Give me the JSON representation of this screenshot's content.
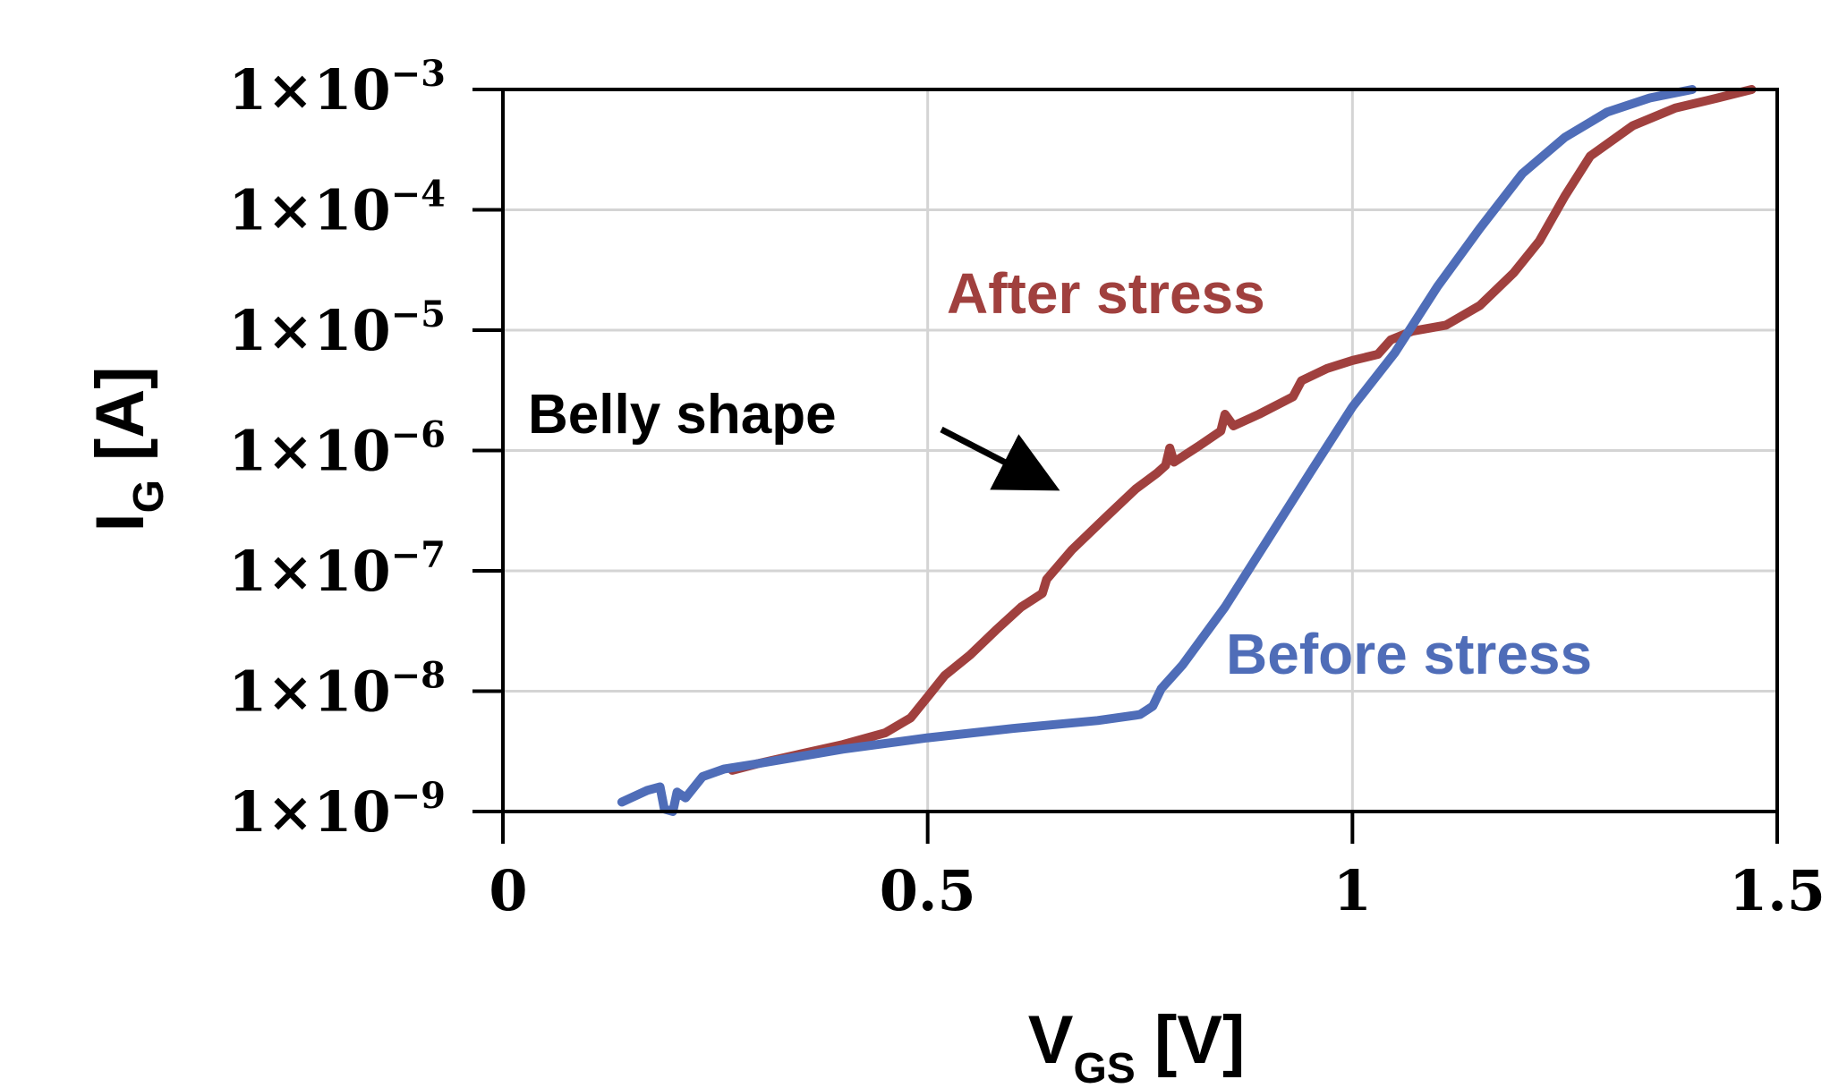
{
  "chart_data": {
    "type": "line",
    "title": "",
    "x_axis": {
      "label_main": "V",
      "label_sub": "GS",
      "label_unit": "[V]",
      "range": [
        0,
        1.5
      ],
      "ticks": [
        0,
        0.5,
        1,
        1.5
      ],
      "tick_labels": [
        "0",
        "0.5",
        "1",
        "1.5"
      ]
    },
    "y_axis": {
      "label_main": "I",
      "label_sub": "G",
      "label_unit": "[A]",
      "scale": "log",
      "range": [
        1e-09,
        0.001
      ],
      "ticks": [
        0.001,
        0.0001,
        1e-05,
        1e-06,
        1e-07,
        1e-08,
        1e-09
      ],
      "tick_labels": [
        {
          "base": "1×10",
          "exp": "−3"
        },
        {
          "base": "1×10",
          "exp": "−4"
        },
        {
          "base": "1×10",
          "exp": "−5"
        },
        {
          "base": "1×10",
          "exp": "−6"
        },
        {
          "base": "1×10",
          "exp": "−7"
        },
        {
          "base": "1×10",
          "exp": "−8"
        },
        {
          "base": "1×10",
          "exp": "−9"
        }
      ]
    },
    "grid": true,
    "series": [
      {
        "name": "After stress",
        "color": "#a0403e",
        "points": [
          [
            0.27,
            2.2e-09
          ],
          [
            0.3,
            2.5e-09
          ],
          [
            0.35,
            3e-09
          ],
          [
            0.4,
            3.6e-09
          ],
          [
            0.45,
            4.5e-09
          ],
          [
            0.48,
            6e-09
          ],
          [
            0.5,
            9e-09
          ],
          [
            0.52,
            1.35e-08
          ],
          [
            0.55,
            2e-08
          ],
          [
            0.58,
            3.2e-08
          ],
          [
            0.61,
            5e-08
          ],
          [
            0.635,
            6.5e-08
          ],
          [
            0.64,
            8.5e-08
          ],
          [
            0.67,
            1.5e-07
          ],
          [
            0.71,
            2.8e-07
          ],
          [
            0.745,
            4.8e-07
          ],
          [
            0.77,
            6.5e-07
          ],
          [
            0.78,
            7.5e-07
          ],
          [
            0.785,
            1.05e-06
          ],
          [
            0.79,
            8e-07
          ],
          [
            0.82,
            1.1e-06
          ],
          [
            0.845,
            1.45e-06
          ],
          [
            0.85,
            2e-06
          ],
          [
            0.86,
            1.6e-06
          ],
          [
            0.89,
            2e-06
          ],
          [
            0.93,
            2.8e-06
          ],
          [
            0.94,
            3.8e-06
          ],
          [
            0.97,
            4.8e-06
          ],
          [
            1.0,
            5.6e-06
          ],
          [
            1.03,
            6.3e-06
          ],
          [
            1.045,
            8.3e-06
          ],
          [
            1.07,
            9.8e-06
          ],
          [
            1.11,
            1.1e-05
          ],
          [
            1.15,
            1.6e-05
          ],
          [
            1.19,
            3e-05
          ],
          [
            1.22,
            5.5e-05
          ],
          [
            1.25,
            0.00013
          ],
          [
            1.28,
            0.00028
          ],
          [
            1.33,
            0.0005
          ],
          [
            1.38,
            0.0007
          ],
          [
            1.43,
            0.00085
          ],
          [
            1.47,
            0.001
          ]
        ]
      },
      {
        "name": "Before stress",
        "color": "#4f6db8",
        "points": [
          [
            0.14,
            1.2e-09
          ],
          [
            0.17,
            1.5e-09
          ],
          [
            0.185,
            1.6e-09
          ],
          [
            0.19,
            1.05e-09
          ],
          [
            0.2,
            1e-09
          ],
          [
            0.205,
            1.45e-09
          ],
          [
            0.215,
            1.3e-09
          ],
          [
            0.235,
            1.95e-09
          ],
          [
            0.26,
            2.25e-09
          ],
          [
            0.3,
            2.5e-09
          ],
          [
            0.4,
            3.3e-09
          ],
          [
            0.5,
            4.1e-09
          ],
          [
            0.6,
            4.9e-09
          ],
          [
            0.7,
            5.7e-09
          ],
          [
            0.75,
            6.4e-09
          ],
          [
            0.765,
            7.5e-09
          ],
          [
            0.775,
            1.05e-08
          ],
          [
            0.8,
            1.65e-08
          ],
          [
            0.85,
            5e-08
          ],
          [
            0.9,
            1.8e-07
          ],
          [
            0.95,
            6.5e-07
          ],
          [
            1.0,
            2.3e-06
          ],
          [
            1.05,
            6.5e-06
          ],
          [
            1.1,
            2.3e-05
          ],
          [
            1.15,
            7e-05
          ],
          [
            1.2,
            0.0002
          ],
          [
            1.25,
            0.0004
          ],
          [
            1.3,
            0.00065
          ],
          [
            1.35,
            0.00085
          ],
          [
            1.4,
            0.001
          ]
        ]
      }
    ],
    "annotations": {
      "belly_shape": "Belly shape",
      "after_stress": "After stress",
      "before_stress": "Before stress"
    }
  }
}
